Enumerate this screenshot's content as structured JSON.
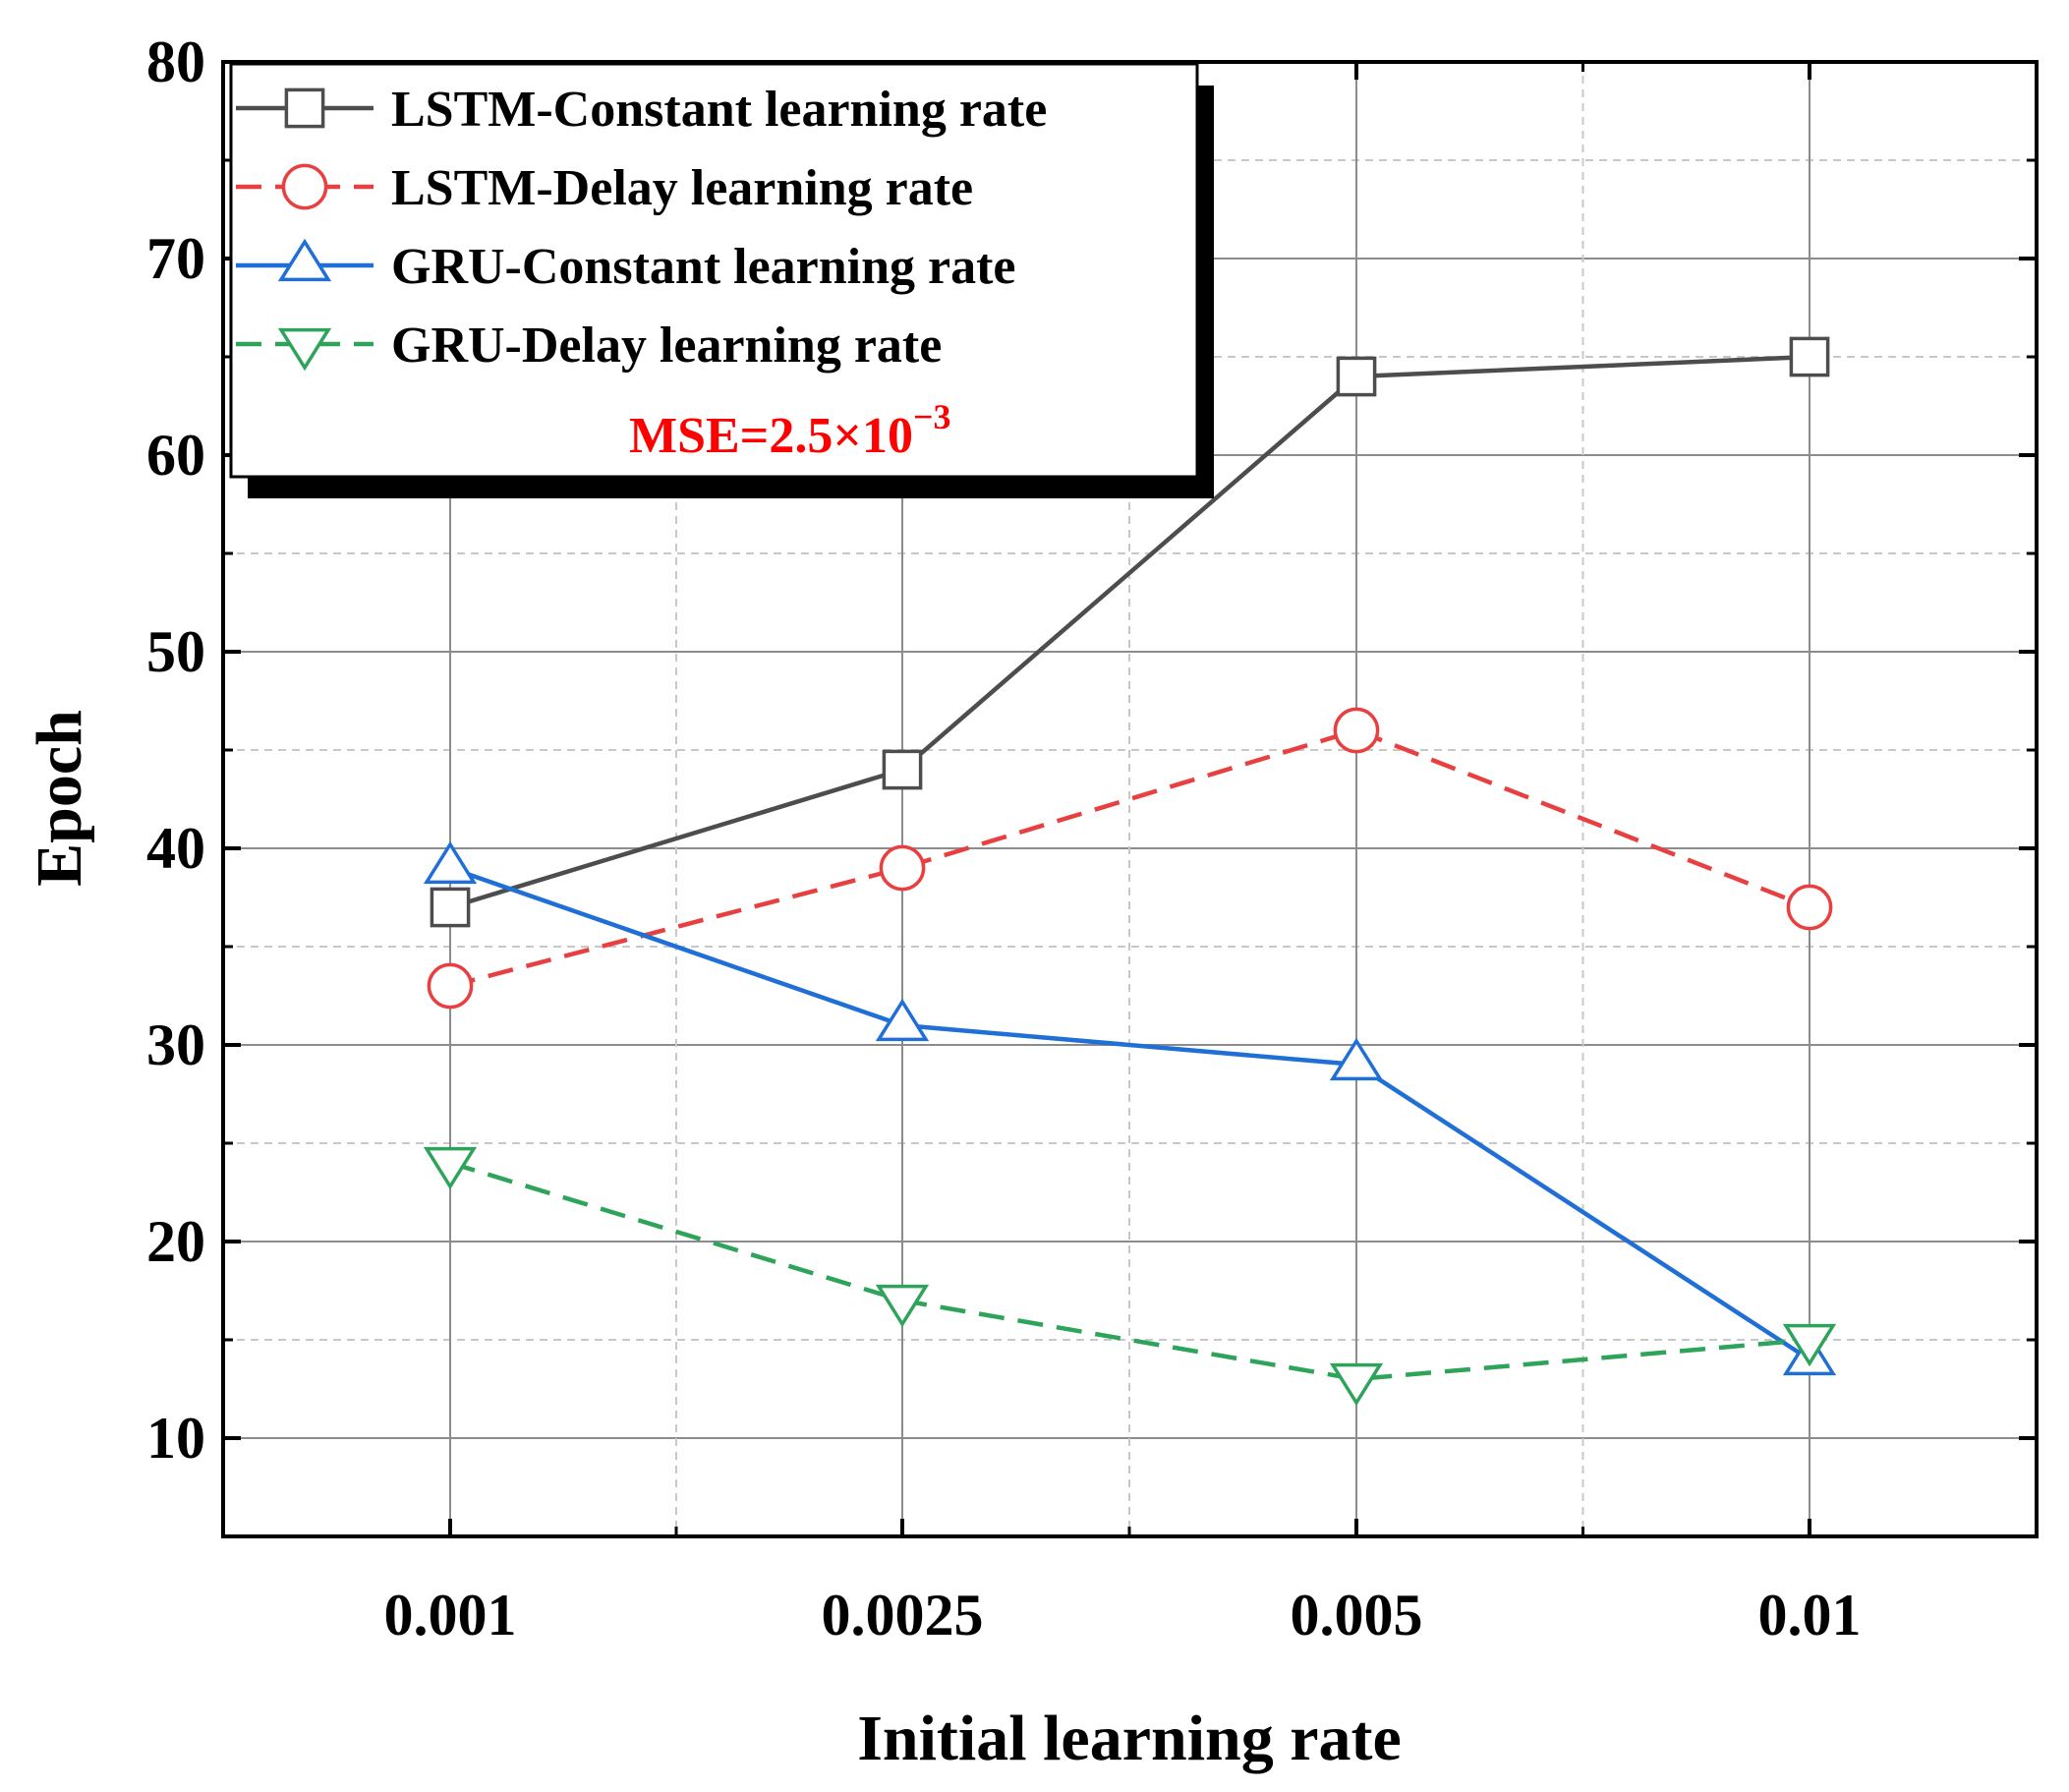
{
  "chart_data": {
    "type": "line",
    "title": "",
    "xlabel": "Initial learning rate",
    "ylabel": "Epoch",
    "categories": [
      "0.001",
      "0.0025",
      "0.005",
      "0.01"
    ],
    "ylim": [
      5,
      80
    ],
    "yticks": [
      10,
      20,
      30,
      40,
      50,
      60,
      70,
      80
    ],
    "grid": true,
    "legend_position": "top-left",
    "series": [
      {
        "name": "LSTM-Constant learning rate",
        "values": [
          37,
          44,
          64,
          65
        ],
        "color": "#4d4d4d",
        "marker": "square",
        "dash": "solid"
      },
      {
        "name": "LSTM-Delay learning rate",
        "values": [
          33,
          39,
          46,
          37
        ],
        "color": "#e84040",
        "marker": "circle",
        "dash": "dashed"
      },
      {
        "name": "GRU-Constant learning rate",
        "values": [
          39,
          31,
          29,
          14
        ],
        "color": "#1f6fd6",
        "marker": "triangle-up",
        "dash": "solid"
      },
      {
        "name": "GRU-Delay learning rate",
        "values": [
          24,
          17,
          13,
          15
        ],
        "color": "#2ea35a",
        "marker": "triangle-down",
        "dash": "dashed"
      }
    ],
    "annotation": {
      "text_base": "MSE=2.5×10",
      "text_exp": "−3",
      "color": "#ff0000"
    }
  }
}
